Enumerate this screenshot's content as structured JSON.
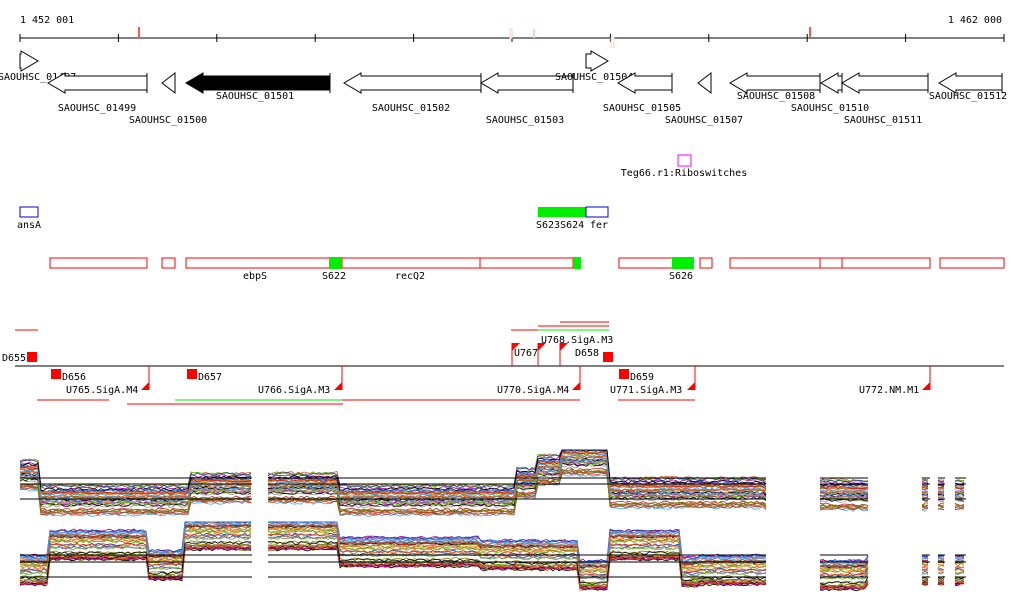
{
  "ruler": {
    "start_label": "1 452 001",
    "end_label": "1 462 000"
  },
  "genes": [
    {
      "name": "SAOUHSC_01497",
      "strand": "+"
    },
    {
      "name": "SAOUHSC_01499",
      "strand": "-"
    },
    {
      "name": "SAOUHSC_01500",
      "strand": "-"
    },
    {
      "name": "SAOUHSC_01501",
      "strand": "-",
      "selected": true
    },
    {
      "name": "SAOUHSC_01502",
      "strand": "-"
    },
    {
      "name": "SAOUHSC_01503",
      "strand": "-"
    },
    {
      "name": "SAOUHSC_01504",
      "strand": "+"
    },
    {
      "name": "SAOUHSC_01505",
      "strand": "-"
    },
    {
      "name": "SAOUHSC_01507",
      "strand": "-"
    },
    {
      "name": "SAOUHSC_01508",
      "strand": "-"
    },
    {
      "name": "SAOUHSC_01510",
      "strand": "-"
    },
    {
      "name": "SAOUHSC_01511",
      "strand": "-"
    },
    {
      "name": "SAOUHSC_01512",
      "strand": "-"
    }
  ],
  "riboswitch": {
    "label": "Teg66.r1:Riboswitches",
    "color": "#ff00ff"
  },
  "annotations": [
    {
      "label": "ansA"
    },
    {
      "label": "S623S624"
    },
    {
      "label": "fer"
    }
  ],
  "transcripts": {
    "labels": [
      "ebpS",
      "S622",
      "recQ2",
      "S626"
    ]
  },
  "operons": {
    "labels": [
      "D655",
      "D656",
      "U765.SigA.M4",
      "D657",
      "U766.SigA.M3",
      "U767",
      "U768.SigA.M3",
      "D658",
      "U770.SigA.M4",
      "D659",
      "U771.SigA.M3",
      "U772.NM.M1"
    ]
  },
  "colors": {
    "gene_outline": "#000000",
    "transcript": "#ff0000",
    "highlight": "#00ee00",
    "annotation": "#0000cc"
  }
}
